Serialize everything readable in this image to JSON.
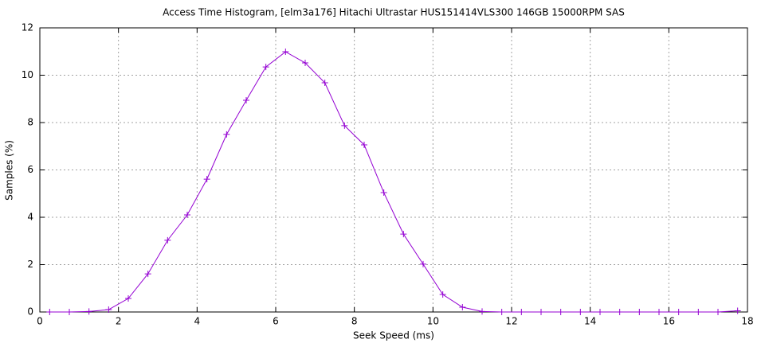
{
  "chart_data": {
    "type": "line",
    "title": "Access Time Histogram, [elm3a176] Hitachi Ultrastar HUS151414VLS300 146GB 15000RPM SAS",
    "x_label": "Seek Speed (ms)",
    "y_label": "Samples (%)",
    "x": [
      0.25,
      0.75,
      1.25,
      1.75,
      2.25,
      2.75,
      3.25,
      3.75,
      4.25,
      4.75,
      5.25,
      5.75,
      6.25,
      6.75,
      7.25,
      7.75,
      8.25,
      8.75,
      9.25,
      9.75,
      10.25,
      10.75,
      11.25,
      11.75,
      12.25,
      12.75,
      13.25,
      13.75,
      14.25,
      14.75,
      15.25,
      15.75,
      16.25,
      16.75,
      17.25,
      17.75
    ],
    "values": [
      0,
      0,
      0.02,
      0.1,
      0.57,
      1.61,
      3.03,
      4.1,
      5.61,
      7.5,
      8.94,
      10.35,
      10.99,
      10.52,
      9.68,
      7.87,
      7.06,
      5.04,
      3.29,
      2.02,
      0.74,
      0.2,
      0.02,
      0,
      0,
      0,
      0,
      0,
      0,
      0,
      0,
      0,
      0,
      0,
      0,
      0.05
    ],
    "color": "#9400d3",
    "xlim": [
      0,
      18
    ],
    "xticks": [
      0,
      2,
      4,
      6,
      8,
      10,
      12,
      14,
      16,
      18
    ],
    "ylim": [
      0,
      12
    ],
    "yticks": [
      0,
      2,
      4,
      6,
      8,
      10,
      12
    ],
    "grid": true
  }
}
